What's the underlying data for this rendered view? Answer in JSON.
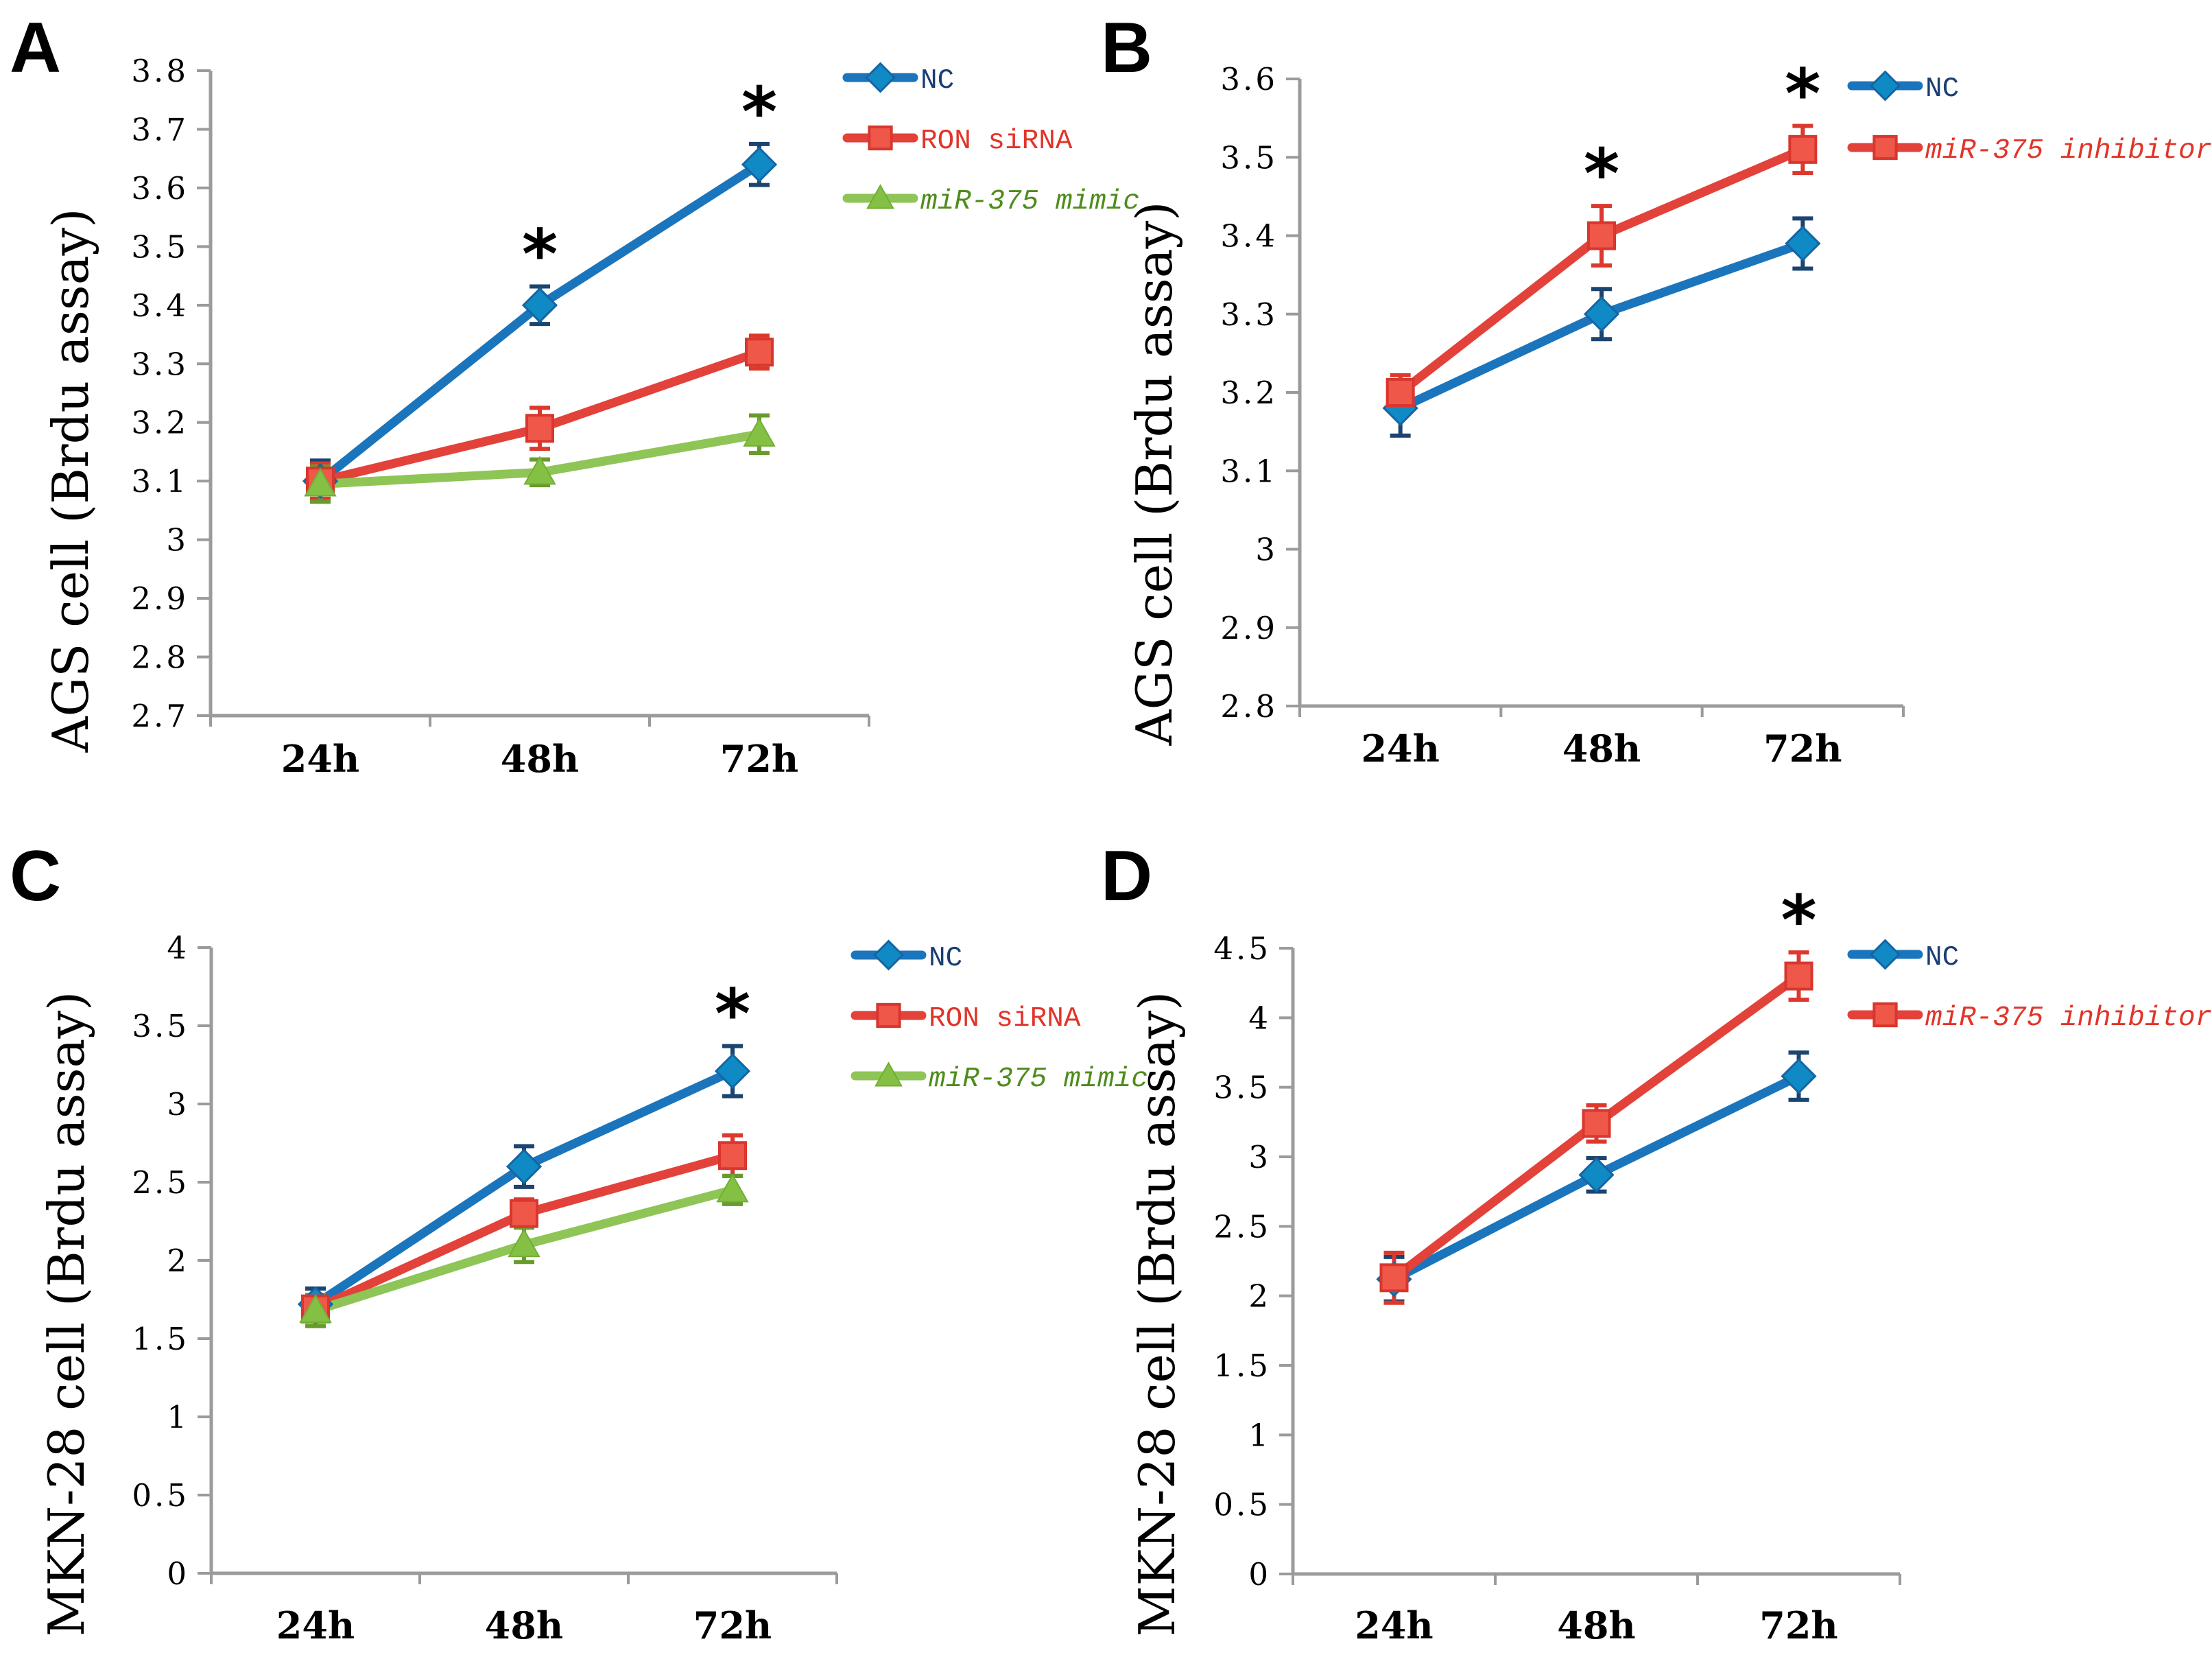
{
  "figure_background": "#ffffff",
  "palette": {
    "axis": "#9b9b9b",
    "text": "#000000",
    "blue": {
      "line": "#1b75bc",
      "marker": "#108ac5",
      "marker_stroke": "#1565a3",
      "err": "#1c4470",
      "text": "#193f73"
    },
    "red": {
      "line": "#e2423a",
      "marker": "#ef5748",
      "marker_stroke": "#d8362e",
      "err": "#dc382e",
      "text": "#e23429"
    },
    "green": {
      "line": "#8ec556",
      "marker": "#83c043",
      "marker_stroke": "#74ad37",
      "err": "#699b2c",
      "text": "#4e8c1b"
    }
  },
  "chart_data": [
    {
      "id": "A",
      "panel_letter": "A",
      "type": "line",
      "ylabel": "AGS cell (Brdu assay)",
      "categories": [
        "24h",
        "48h",
        "72h"
      ],
      "ymin": 2.7,
      "ymax": 3.8,
      "ystep": 0.1,
      "grid": false,
      "legend_position": "right-top",
      "series": [
        {
          "name": "NC",
          "color": "blue",
          "marker": "diamond",
          "italic": false,
          "values": [
            3.1,
            3.4,
            3.64
          ],
          "errors": [
            0.035,
            0.032,
            0.035
          ],
          "significance": [
            false,
            true,
            true
          ]
        },
        {
          "name": "RON siRNA",
          "color": "red",
          "marker": "square",
          "italic": false,
          "values": [
            3.1,
            3.19,
            3.32
          ],
          "errors": [
            0.03,
            0.035,
            0.028
          ],
          "significance": [
            false,
            false,
            false
          ]
        },
        {
          "name": "miR-375 mimic",
          "color": "green",
          "marker": "triangle",
          "italic": true,
          "values": [
            3.095,
            3.115,
            3.18
          ],
          "errors": [
            0.03,
            0.022,
            0.032
          ],
          "significance": [
            false,
            false,
            false
          ]
        }
      ],
      "layout": {
        "axis_x": 307,
        "axis_right": 1267,
        "top": 103,
        "bottom": 1043,
        "letter_x": 14,
        "letter_y": 105,
        "ylabel_x": 128,
        "ylabel_y": 700,
        "xlabel_y": 1125,
        "legend": {
          "x1": 1235,
          "x2": 1332,
          "text_x": 1342,
          "rows": [
            113,
            201,
            289
          ]
        }
      }
    },
    {
      "id": "B",
      "panel_letter": "B",
      "type": "line",
      "ylabel": "AGS cell (Brdu assay)",
      "categories": [
        "24h",
        "48h",
        "72h"
      ],
      "ymin": 2.8,
      "ymax": 3.6,
      "ystep": 0.1,
      "grid": false,
      "legend_position": "right-top",
      "series": [
        {
          "name": "NC",
          "color": "blue",
          "marker": "diamond",
          "italic": false,
          "values": [
            3.18,
            3.3,
            3.39
          ],
          "errors": [
            0.035,
            0.032,
            0.032
          ],
          "significance": [
            false,
            false,
            false
          ]
        },
        {
          "name": "miR-375 inhibitor",
          "color": "red",
          "marker": "square",
          "italic": true,
          "values": [
            3.2,
            3.4,
            3.51
          ],
          "errors": [
            0.022,
            0.038,
            0.03
          ],
          "significance": [
            false,
            true,
            true
          ]
        }
      ],
      "layout": {
        "axis_x": 295,
        "axis_right": 1175,
        "top": 115,
        "bottom": 1029,
        "letter_x": 5,
        "letter_y": 105,
        "ylabel_x": 108,
        "ylabel_y": 690,
        "xlabel_y": 1110,
        "legend": {
          "x1": 1100,
          "x2": 1197,
          "text_x": 1207,
          "rows": [
            125,
            215
          ]
        }
      }
    },
    {
      "id": "C",
      "panel_letter": "C",
      "type": "line",
      "ylabel": "MKN-28 cell (Brdu assay)",
      "categories": [
        "24h",
        "48h",
        "72h"
      ],
      "ymin": 0,
      "ymax": 4,
      "ystep": 0.5,
      "grid": false,
      "legend_position": "right-top",
      "series": [
        {
          "name": "NC",
          "color": "blue",
          "marker": "diamond",
          "italic": false,
          "values": [
            1.72,
            2.6,
            3.21
          ],
          "errors": [
            0.1,
            0.13,
            0.16
          ],
          "significance": [
            false,
            false,
            true
          ]
        },
        {
          "name": "RON siRNA",
          "color": "red",
          "marker": "square",
          "italic": false,
          "values": [
            1.69,
            2.3,
            2.67
          ],
          "errors": [
            0.08,
            0.09,
            0.13
          ],
          "significance": [
            false,
            false,
            false
          ]
        },
        {
          "name": "miR-375 mimic",
          "color": "green",
          "marker": "triangle",
          "italic": true,
          "values": [
            1.68,
            2.1,
            2.45
          ],
          "errors": [
            0.1,
            0.11,
            0.09
          ],
          "significance": [
            false,
            false,
            false
          ]
        }
      ],
      "layout": {
        "axis_x": 308,
        "axis_right": 1220,
        "top": 181,
        "bottom": 1093,
        "letter_x": 14,
        "letter_y": 112,
        "ylabel_x": 122,
        "ylabel_y": 715,
        "xlabel_y": 1188,
        "legend": {
          "x1": 1247,
          "x2": 1344,
          "text_x": 1354,
          "rows": [
            192,
            280,
            368
          ]
        }
      }
    },
    {
      "id": "D",
      "panel_letter": "D",
      "type": "line",
      "ylabel": "MKN-28 cell (Brdu assay)",
      "categories": [
        "24h",
        "48h",
        "72h"
      ],
      "ymin": 0,
      "ymax": 4.5,
      "ystep": 0.5,
      "grid": false,
      "legend_position": "right-top",
      "series": [
        {
          "name": "NC",
          "color": "blue",
          "marker": "diamond",
          "italic": false,
          "values": [
            2.12,
            2.87,
            3.58
          ],
          "errors": [
            0.16,
            0.12,
            0.17
          ],
          "significance": [
            false,
            false,
            false
          ]
        },
        {
          "name": "miR-375 inhibitor",
          "color": "red",
          "marker": "square",
          "italic": true,
          "values": [
            2.13,
            3.24,
            4.3
          ],
          "errors": [
            0.18,
            0.13,
            0.17
          ],
          "significance": [
            false,
            false,
            true
          ]
        }
      ],
      "layout": {
        "axis_x": 285,
        "axis_right": 1170,
        "top": 182,
        "bottom": 1094,
        "letter_x": 5,
        "letter_y": 112,
        "ylabel_x": 112,
        "ylabel_y": 715,
        "xlabel_y": 1188,
        "legend": {
          "x1": 1100,
          "x2": 1197,
          "text_x": 1207,
          "rows": [
            191,
            279
          ]
        }
      }
    }
  ]
}
